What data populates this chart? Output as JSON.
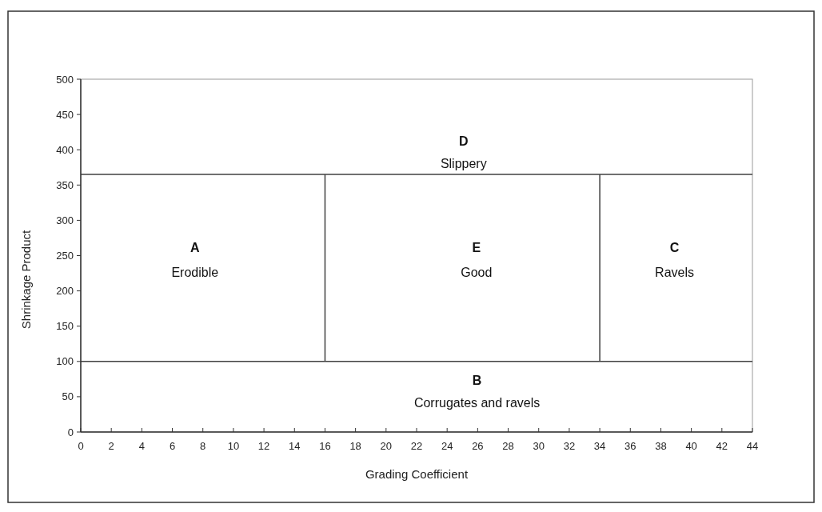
{
  "chart_data": {
    "type": "line",
    "xlabel": "Grading Coefficient",
    "ylabel": "Shrinkage Product",
    "xlim": [
      0,
      44
    ],
    "xticks": [
      0,
      2,
      4,
      6,
      8,
      10,
      12,
      14,
      16,
      18,
      20,
      22,
      24,
      26,
      28,
      30,
      32,
      34,
      36,
      38,
      40,
      42,
      44
    ],
    "ylim": [
      0,
      500
    ],
    "yticks": [
      0,
      50,
      100,
      150,
      200,
      250,
      300,
      350,
      400,
      450,
      500
    ],
    "grid": false,
    "marker": "none",
    "line_style": "solid",
    "series": [
      {
        "color": "#404040",
        "x": [
          0,
          44
        ],
        "values": [
          365,
          365
        ]
      },
      {
        "color": "#404040",
        "x": [
          0,
          44
        ],
        "values": [
          100,
          100
        ]
      },
      {
        "color": "#404040",
        "x": [
          16,
          16
        ],
        "values": [
          100,
          365
        ]
      },
      {
        "color": "#404040",
        "x": [
          34,
          34
        ],
        "values": [
          100,
          365
        ]
      }
    ],
    "annotations": [
      "A",
      "Erodible",
      "E",
      "Good",
      "C",
      "Ravels",
      "D",
      "Slippery",
      "B",
      "Corrugates and ravels"
    ]
  }
}
